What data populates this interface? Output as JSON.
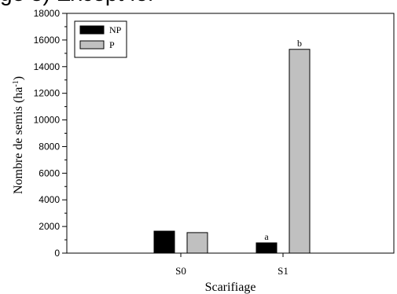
{
  "top_fragment": "ge 3) Except for",
  "chart_data": {
    "type": "bar",
    "categories": [
      "S0",
      "S1"
    ],
    "series": [
      {
        "name": "NP",
        "values": [
          1650,
          770
        ],
        "color": "#000000"
      },
      {
        "name": "P",
        "values": [
          1540,
          15300
        ],
        "color": "#c0c0c0"
      }
    ],
    "annotations": [
      {
        "series": "NP",
        "category": "S1",
        "text": "a"
      },
      {
        "series": "P",
        "category": "S1",
        "text": "b"
      }
    ],
    "xlabel": "Scarifiage",
    "ylabel": "Nombre de semis (ha",
    "ylabel_sup": "-1",
    "ylabel_end": ")",
    "ylim": [
      0,
      18000
    ],
    "yticks": [
      0,
      2000,
      4000,
      6000,
      8000,
      10000,
      12000,
      14000,
      16000,
      18000
    ],
    "legend_position": "top-left",
    "grid": false
  }
}
